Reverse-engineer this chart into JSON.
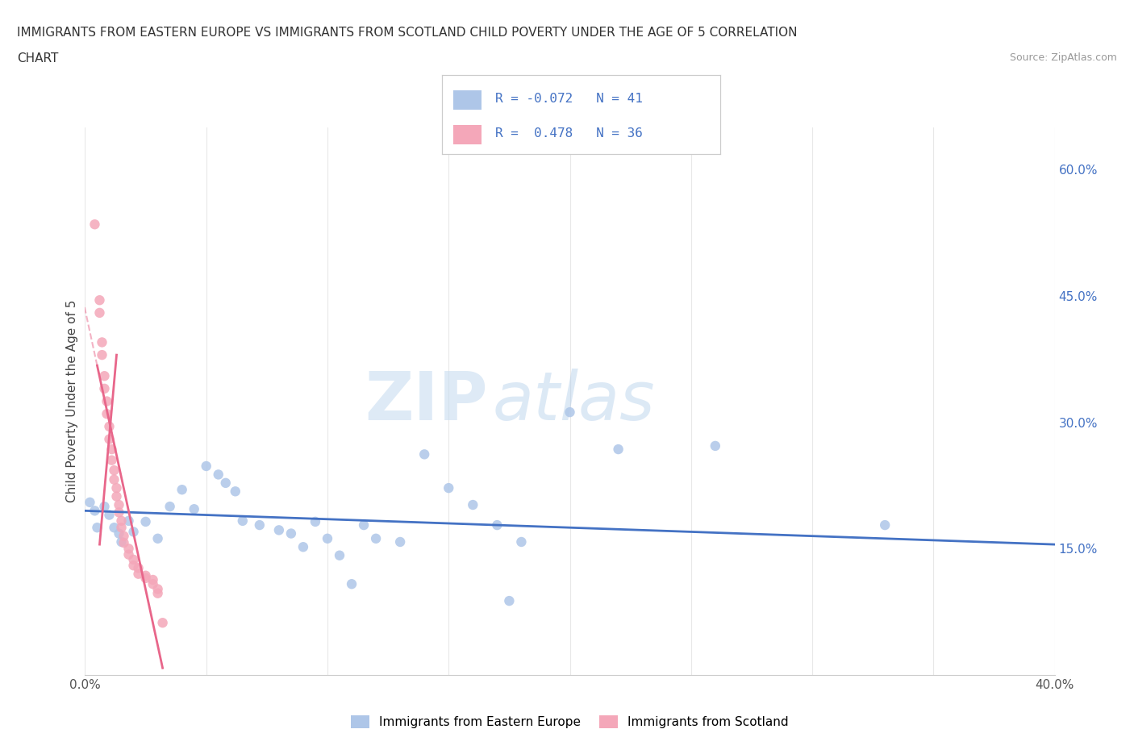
{
  "title_line1": "IMMIGRANTS FROM EASTERN EUROPE VS IMMIGRANTS FROM SCOTLAND CHILD POVERTY UNDER THE AGE OF 5 CORRELATION",
  "title_line2": "CHART",
  "source": "Source: ZipAtlas.com",
  "ylabel": "Child Poverty Under the Age of 5",
  "xlim": [
    0.0,
    0.4
  ],
  "ylim": [
    0.0,
    0.65
  ],
  "ytick_labels_right": [
    "15.0%",
    "30.0%",
    "45.0%",
    "60.0%"
  ],
  "ytick_values_right": [
    0.15,
    0.3,
    0.45,
    0.6
  ],
  "r_eastern": -0.072,
  "n_eastern": 41,
  "r_scotland": 0.478,
  "n_scotland": 36,
  "legend_labels": [
    "Immigrants from Eastern Europe",
    "Immigrants from Scotland"
  ],
  "color_eastern": "#aec6e8",
  "color_scotland": "#f4a7b9",
  "color_eastern_line": "#4472c4",
  "color_scotland_line": "#e8668a",
  "watermark_zip": "ZIP",
  "watermark_atlas": "atlas",
  "eastern_europe_points": [
    [
      0.002,
      0.205
    ],
    [
      0.004,
      0.195
    ],
    [
      0.005,
      0.175
    ],
    [
      0.008,
      0.2
    ],
    [
      0.01,
      0.19
    ],
    [
      0.012,
      0.175
    ],
    [
      0.014,
      0.168
    ],
    [
      0.015,
      0.158
    ],
    [
      0.018,
      0.183
    ],
    [
      0.02,
      0.17
    ],
    [
      0.025,
      0.182
    ],
    [
      0.03,
      0.162
    ],
    [
      0.035,
      0.2
    ],
    [
      0.04,
      0.22
    ],
    [
      0.045,
      0.197
    ],
    [
      0.05,
      0.248
    ],
    [
      0.055,
      0.238
    ],
    [
      0.058,
      0.228
    ],
    [
      0.062,
      0.218
    ],
    [
      0.065,
      0.183
    ],
    [
      0.072,
      0.178
    ],
    [
      0.08,
      0.172
    ],
    [
      0.085,
      0.168
    ],
    [
      0.09,
      0.152
    ],
    [
      0.095,
      0.182
    ],
    [
      0.1,
      0.162
    ],
    [
      0.105,
      0.142
    ],
    [
      0.11,
      0.108
    ],
    [
      0.115,
      0.178
    ],
    [
      0.12,
      0.162
    ],
    [
      0.13,
      0.158
    ],
    [
      0.14,
      0.262
    ],
    [
      0.15,
      0.222
    ],
    [
      0.16,
      0.202
    ],
    [
      0.17,
      0.178
    ],
    [
      0.175,
      0.088
    ],
    [
      0.18,
      0.158
    ],
    [
      0.2,
      0.312
    ],
    [
      0.22,
      0.268
    ],
    [
      0.26,
      0.272
    ],
    [
      0.33,
      0.178
    ]
  ],
  "scotland_points": [
    [
      0.004,
      0.535
    ],
    [
      0.006,
      0.445
    ],
    [
      0.006,
      0.43
    ],
    [
      0.007,
      0.395
    ],
    [
      0.007,
      0.38
    ],
    [
      0.008,
      0.355
    ],
    [
      0.008,
      0.34
    ],
    [
      0.009,
      0.325
    ],
    [
      0.009,
      0.31
    ],
    [
      0.01,
      0.295
    ],
    [
      0.01,
      0.28
    ],
    [
      0.011,
      0.268
    ],
    [
      0.011,
      0.255
    ],
    [
      0.012,
      0.243
    ],
    [
      0.012,
      0.232
    ],
    [
      0.013,
      0.222
    ],
    [
      0.013,
      0.212
    ],
    [
      0.014,
      0.202
    ],
    [
      0.014,
      0.193
    ],
    [
      0.015,
      0.183
    ],
    [
      0.015,
      0.175
    ],
    [
      0.016,
      0.165
    ],
    [
      0.016,
      0.157
    ],
    [
      0.018,
      0.15
    ],
    [
      0.018,
      0.143
    ],
    [
      0.02,
      0.137
    ],
    [
      0.02,
      0.13
    ],
    [
      0.022,
      0.127
    ],
    [
      0.022,
      0.12
    ],
    [
      0.025,
      0.118
    ],
    [
      0.025,
      0.115
    ],
    [
      0.028,
      0.113
    ],
    [
      0.028,
      0.108
    ],
    [
      0.03,
      0.102
    ],
    [
      0.03,
      0.097
    ],
    [
      0.032,
      0.062
    ]
  ]
}
